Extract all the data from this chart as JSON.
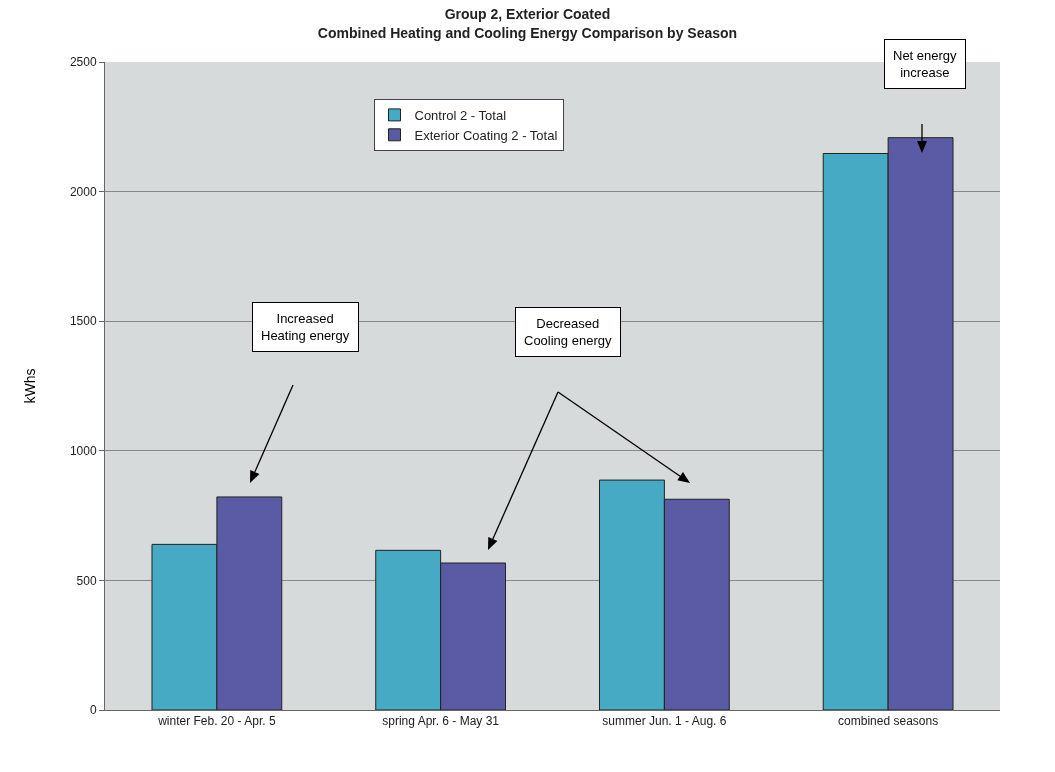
{
  "chart_data": {
    "type": "bar",
    "title": "Group 2, Exterior Coated\nCombined Heating and Cooling Energy Comparison by Season",
    "ylabel": "kWhs",
    "categories": [
      "winter Feb. 20 - Apr. 5",
      "spring Apr. 6 - May 31",
      "summer Jun. 1 - Aug. 6",
      "combined seasons"
    ],
    "series": [
      {
        "name": "Control 2 - Total",
        "color": "#46aac4",
        "values": [
          639,
          616,
          887,
          2147
        ]
      },
      {
        "name": "Exterior Coating 2 - Total",
        "color": "#5a5aa5",
        "values": [
          822,
          567,
          813,
          2208
        ]
      }
    ],
    "ylim": [
      0,
      2500
    ],
    "yticks": [
      0,
      500,
      1000,
      1500,
      2000,
      2500
    ],
    "grid": "y",
    "legend": "top",
    "annotations": [
      "Increased\nHeating energy",
      "Decreased\nCooling energy",
      "Net energy\nincrease"
    ]
  }
}
